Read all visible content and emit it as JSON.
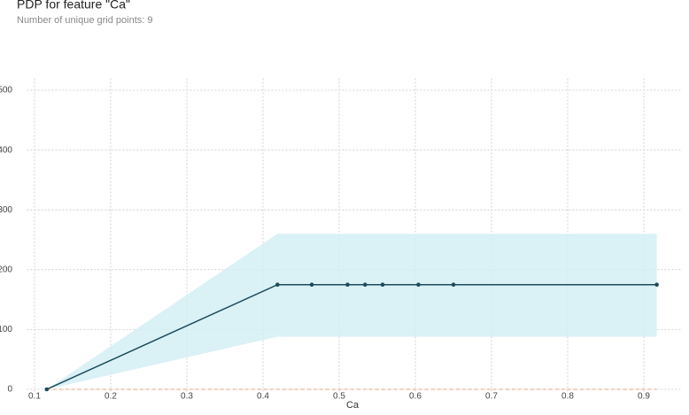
{
  "chart_data": {
    "type": "line",
    "title": "PDP for feature \"Ca\"",
    "subtitle": "Number of unique grid points: 9",
    "x_label": "Ca",
    "x": [
      0.116,
      0.419,
      0.464,
      0.511,
      0.534,
      0.557,
      0.604,
      0.65,
      0.917
    ],
    "values": [
      0,
      175,
      175,
      175,
      175,
      175,
      175,
      175,
      175
    ],
    "upper": [
      0,
      260,
      260,
      260,
      260,
      260,
      260,
      260,
      260
    ],
    "lower": [
      0,
      88,
      88,
      88,
      88,
      88,
      88,
      88,
      88
    ],
    "color": "#1c4b5a",
    "band_color": "#d4eef4",
    "zero_line_color": "#e8a07a",
    "xlim": [
      0.09,
      0.95
    ],
    "xticks": [
      0.1,
      0.2,
      0.3,
      0.4,
      0.5,
      0.6,
      0.7,
      0.8,
      0.9
    ],
    "ylim": [
      -8,
      520
    ],
    "yticks": [
      0,
      100,
      200,
      300,
      400,
      500
    ],
    "grid": true
  }
}
